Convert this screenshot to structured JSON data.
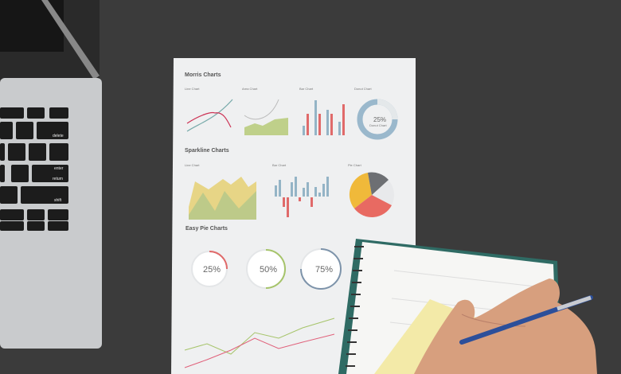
{
  "paper": {
    "morris_title": "Morris Charts",
    "line_chart": "Line Chart",
    "area_chart": "Area Chart",
    "bar_chart": "Bar Chart",
    "donut_chart": "Donut Chart",
    "donut_value": "25%",
    "donut_label": "Donut Chart",
    "sparkline_title": "Sparkline Charts",
    "spark_line": "Line Chart",
    "spark_bar": "Bar Chart",
    "spark_pie": "Pie Chart",
    "easy_pie_title": "Easy Pie Charts",
    "pies": [
      "25%",
      "50%",
      "75%"
    ]
  },
  "keyboard": {
    "delete": "delete",
    "enter": "enter",
    "return": "return",
    "shift": "shift"
  },
  "colors": {
    "desk": "#3c3c3c",
    "paper": "#f1f2f3",
    "red": "#e06a6a",
    "blue": "#94b4c6",
    "green": "#b5c97c",
    "yellow": "#f0b93a"
  }
}
